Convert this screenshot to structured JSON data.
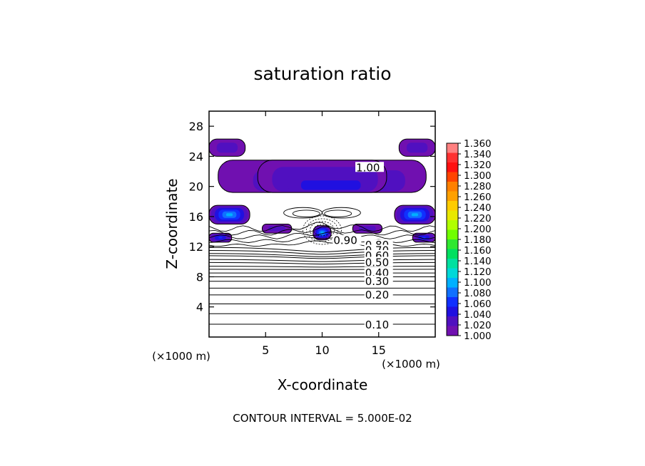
{
  "chart_data": {
    "type": "contour",
    "title": "saturation ratio",
    "xlabel": "X-coordinate",
    "ylabel": "Z-coordinate",
    "x_unit": "(×1000 m)",
    "y_unit": "(×1000 m)",
    "xlim": [
      0,
      20
    ],
    "ylim": [
      0,
      30
    ],
    "x_ticks": [
      5,
      10,
      15
    ],
    "y_ticks": [
      4,
      8,
      12,
      16,
      20,
      24,
      28
    ],
    "footer": "CONTOUR INTERVAL = 5.000E-02",
    "colorbar": {
      "min": 1.0,
      "max": 1.36,
      "labels": [
        "1.360",
        "1.340",
        "1.320",
        "1.300",
        "1.280",
        "1.260",
        "1.240",
        "1.220",
        "1.200",
        "1.180",
        "1.160",
        "1.140",
        "1.120",
        "1.100",
        "1.080",
        "1.060",
        "1.040",
        "1.020",
        "1.000"
      ],
      "colors": [
        "#ff8080",
        "#ff3030",
        "#ff1010",
        "#ff4400",
        "#ff8000",
        "#ffa000",
        "#ffcc00",
        "#e8e800",
        "#b0ff00",
        "#70ff00",
        "#30e830",
        "#00e060",
        "#00e0a0",
        "#00d8d8",
        "#00b0ff",
        "#1070ff",
        "#1030ff",
        "#2010e0",
        "#5010c0",
        "#7010b0"
      ]
    },
    "contour_labels": [
      {
        "text": "1.00",
        "x": 13.0,
        "z": 22.5
      },
      {
        "text": "0.90",
        "x": 11.0,
        "z": 12.8
      },
      {
        "text": "0.80",
        "x": 13.8,
        "z": 12.2
      },
      {
        "text": "0.70",
        "x": 13.8,
        "z": 11.5
      },
      {
        "text": "0.60",
        "x": 13.8,
        "z": 10.8
      },
      {
        "text": "0.50",
        "x": 13.8,
        "z": 9.9
      },
      {
        "text": "0.40",
        "x": 13.8,
        "z": 8.5
      },
      {
        "text": "0.30",
        "x": 13.8,
        "z": 7.4
      },
      {
        "text": "0.20",
        "x": 13.8,
        "z": 5.6
      },
      {
        "text": "0.10",
        "x": 13.8,
        "z": 1.6
      }
    ],
    "flat_contours_z": [
      1.7,
      3.1,
      4.4,
      5.6,
      6.5,
      7.4,
      8.0,
      8.5,
      9.0,
      9.4,
      9.9,
      10.3,
      10.8,
      11.1,
      11.5,
      11.9
    ],
    "supersaturated_regions": [
      {
        "x0": 0.8,
        "x1": 19.2,
        "z0": 19.2,
        "z1": 23.5,
        "shape": "cap",
        "peak": 1.02
      },
      {
        "x0": 4.3,
        "x1": 15.7,
        "z0": 19.2,
        "z1": 23.5,
        "shape": "cap",
        "peak": 1.03
      },
      {
        "x0": 0.0,
        "x1": 3.2,
        "z0": 24.0,
        "z1": 26.3,
        "shape": "blob",
        "peak": 1.02
      },
      {
        "x0": 16.8,
        "x1": 20.0,
        "z0": 24.0,
        "z1": 26.3,
        "shape": "blob",
        "peak": 1.02
      },
      {
        "x0": 0.0,
        "x1": 3.6,
        "z0": 15.0,
        "z1": 17.5,
        "shape": "blob",
        "peak": 1.09
      },
      {
        "x0": 16.4,
        "x1": 20.0,
        "z0": 15.0,
        "z1": 17.5,
        "shape": "blob",
        "peak": 1.09
      },
      {
        "x0": 9.2,
        "x1": 10.8,
        "z0": 12.9,
        "z1": 14.8,
        "shape": "blob",
        "peak": 1.09
      },
      {
        "x0": 4.7,
        "x1": 7.3,
        "z0": 13.8,
        "z1": 15.0,
        "shape": "blob",
        "peak": 1.02
      },
      {
        "x0": 12.7,
        "x1": 15.3,
        "z0": 13.8,
        "z1": 15.0,
        "shape": "blob",
        "peak": 1.02
      },
      {
        "x0": 0.0,
        "x1": 2.0,
        "z0": 12.6,
        "z1": 13.8,
        "shape": "blob",
        "peak": 1.05
      },
      {
        "x0": 18.0,
        "x1": 20.0,
        "z0": 12.6,
        "z1": 13.8,
        "shape": "blob",
        "peak": 1.05
      }
    ]
  }
}
